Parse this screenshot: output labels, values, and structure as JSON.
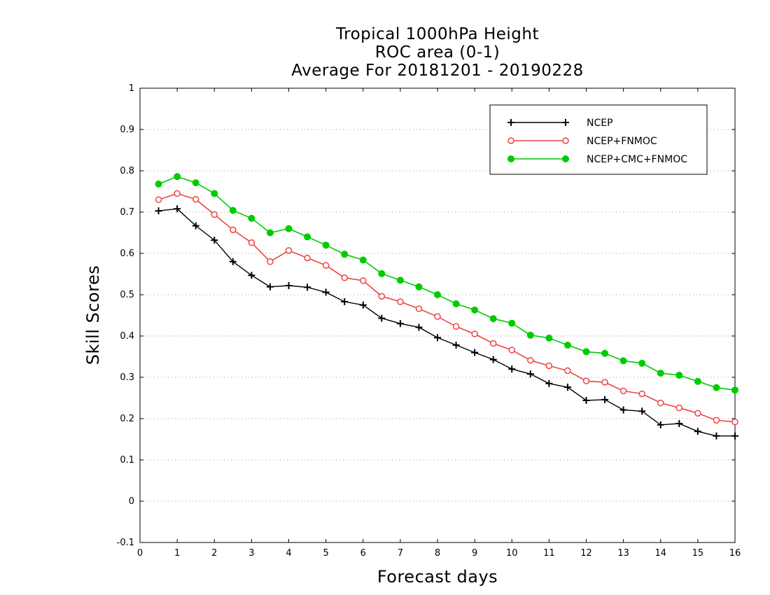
{
  "chart_data": {
    "type": "line",
    "title": [
      "Tropical 1000hPa Height",
      "ROC area (0-1)",
      "Average For 20181201 - 20190228"
    ],
    "xlabel": "Forecast days",
    "ylabel": "Skill Scores",
    "xlim": [
      0,
      16
    ],
    "ylim": [
      -0.1,
      1
    ],
    "xticks": [
      "0",
      "1",
      "2",
      "3",
      "4",
      "5",
      "6",
      "7",
      "8",
      "9",
      "10",
      "11",
      "12",
      "13",
      "14",
      "15",
      "16"
    ],
    "yticks": [
      "-0.1",
      "0",
      "0.1",
      "0.2",
      "0.3",
      "0.4",
      "0.5",
      "0.6",
      "0.7",
      "0.8",
      "0.9",
      "1"
    ],
    "grid": "horizontal dotted",
    "legend_position": "top-right",
    "x": [
      0.5,
      1,
      1.5,
      2,
      2.5,
      3,
      3.5,
      4,
      4.5,
      5,
      5.5,
      6,
      6.5,
      7,
      7.5,
      8,
      8.5,
      9,
      9.5,
      10,
      10.5,
      11,
      11.5,
      12,
      12.5,
      13,
      13.5,
      14,
      14.5,
      15,
      15.5,
      16
    ],
    "series": [
      {
        "name": "NCEP",
        "color": "#000000",
        "marker": "plus",
        "values": [
          0.703,
          0.708,
          0.667,
          0.632,
          0.58,
          0.547,
          0.519,
          0.522,
          0.518,
          0.506,
          0.483,
          0.475,
          0.443,
          0.43,
          0.421,
          0.396,
          0.378,
          0.36,
          0.343,
          0.32,
          0.308,
          0.285,
          0.276,
          0.244,
          0.246,
          0.221,
          0.218,
          0.185,
          0.188,
          0.169,
          0.158,
          0.158
        ]
      },
      {
        "name": "NCEP+FNMOC",
        "color": "#ee4444",
        "marker": "open-circle",
        "values": [
          0.73,
          0.745,
          0.731,
          0.694,
          0.657,
          0.626,
          0.58,
          0.607,
          0.589,
          0.571,
          0.541,
          0.534,
          0.496,
          0.483,
          0.466,
          0.447,
          0.423,
          0.405,
          0.382,
          0.366,
          0.341,
          0.328,
          0.316,
          0.291,
          0.288,
          0.267,
          0.26,
          0.238,
          0.226,
          0.213,
          0.196,
          0.192
        ]
      },
      {
        "name": "NCEP+CMC+FNMOC",
        "color": "#00cc00",
        "marker": "filled-circle",
        "values": [
          0.768,
          0.786,
          0.771,
          0.745,
          0.704,
          0.685,
          0.65,
          0.66,
          0.64,
          0.62,
          0.598,
          0.584,
          0.551,
          0.535,
          0.519,
          0.5,
          0.478,
          0.463,
          0.442,
          0.431,
          0.402,
          0.395,
          0.378,
          0.362,
          0.358,
          0.34,
          0.334,
          0.31,
          0.305,
          0.29,
          0.275,
          0.269
        ]
      }
    ]
  }
}
